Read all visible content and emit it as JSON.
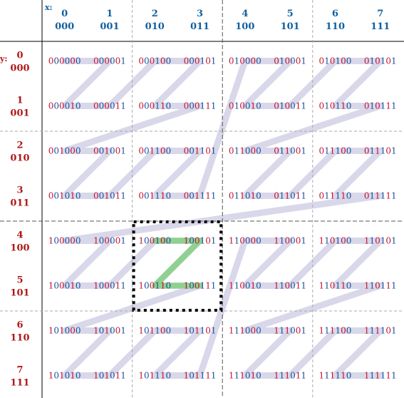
{
  "axis_x_label": "x:",
  "axis_y_label": "y:",
  "columns": [
    {
      "dec": "0",
      "bin": "000"
    },
    {
      "dec": "1",
      "bin": "001"
    },
    {
      "dec": "2",
      "bin": "010"
    },
    {
      "dec": "3",
      "bin": "011"
    },
    {
      "dec": "4",
      "bin": "100"
    },
    {
      "dec": "5",
      "bin": "101"
    },
    {
      "dec": "6",
      "bin": "110"
    },
    {
      "dec": "7",
      "bin": "111"
    }
  ],
  "rows": [
    {
      "dec": "0",
      "bin": "000"
    },
    {
      "dec": "1",
      "bin": "001"
    },
    {
      "dec": "2",
      "bin": "010"
    },
    {
      "dec": "3",
      "bin": "011"
    },
    {
      "dec": "4",
      "bin": "100"
    },
    {
      "dec": "5",
      "bin": "101"
    },
    {
      "dec": "6",
      "bin": "110"
    },
    {
      "dec": "7",
      "bin": "111"
    }
  ],
  "codes": [
    [
      "000000",
      "000001",
      "000100",
      "000101",
      "010000",
      "010001",
      "010100",
      "010101"
    ],
    [
      "000010",
      "000011",
      "000110",
      "000111",
      "010010",
      "010011",
      "010110",
      "010111"
    ],
    [
      "001000",
      "001001",
      "001100",
      "001101",
      "011000",
      "011001",
      "011100",
      "011101"
    ],
    [
      "001010",
      "001011",
      "001110",
      "001111",
      "011010",
      "011011",
      "011110",
      "011111"
    ],
    [
      "100000",
      "100001",
      "100100",
      "100101",
      "110000",
      "110001",
      "110100",
      "110101"
    ],
    [
      "100010",
      "100011",
      "100110",
      "100111",
      "110010",
      "110011",
      "110110",
      "110111"
    ],
    [
      "101000",
      "101001",
      "101100",
      "101101",
      "111000",
      "111001",
      "111100",
      "111101"
    ],
    [
      "101010",
      "101011",
      "101110",
      "101111",
      "111010",
      "111011",
      "111110",
      "111111"
    ]
  ],
  "highlight_block": {
    "cols": [
      2,
      3
    ],
    "rows": [
      4,
      5
    ]
  },
  "colors": {
    "curve": "#d8d8ea",
    "highlight_curve": "#8fd18f",
    "header_blue": "#1060a0",
    "header_red": "#b01818",
    "bit_red": "#c8102e",
    "bit_blue": "#1a50a0",
    "grid": "#000000",
    "dashed_minor": "#aaaaaa",
    "dashed_major": "#555555"
  }
}
